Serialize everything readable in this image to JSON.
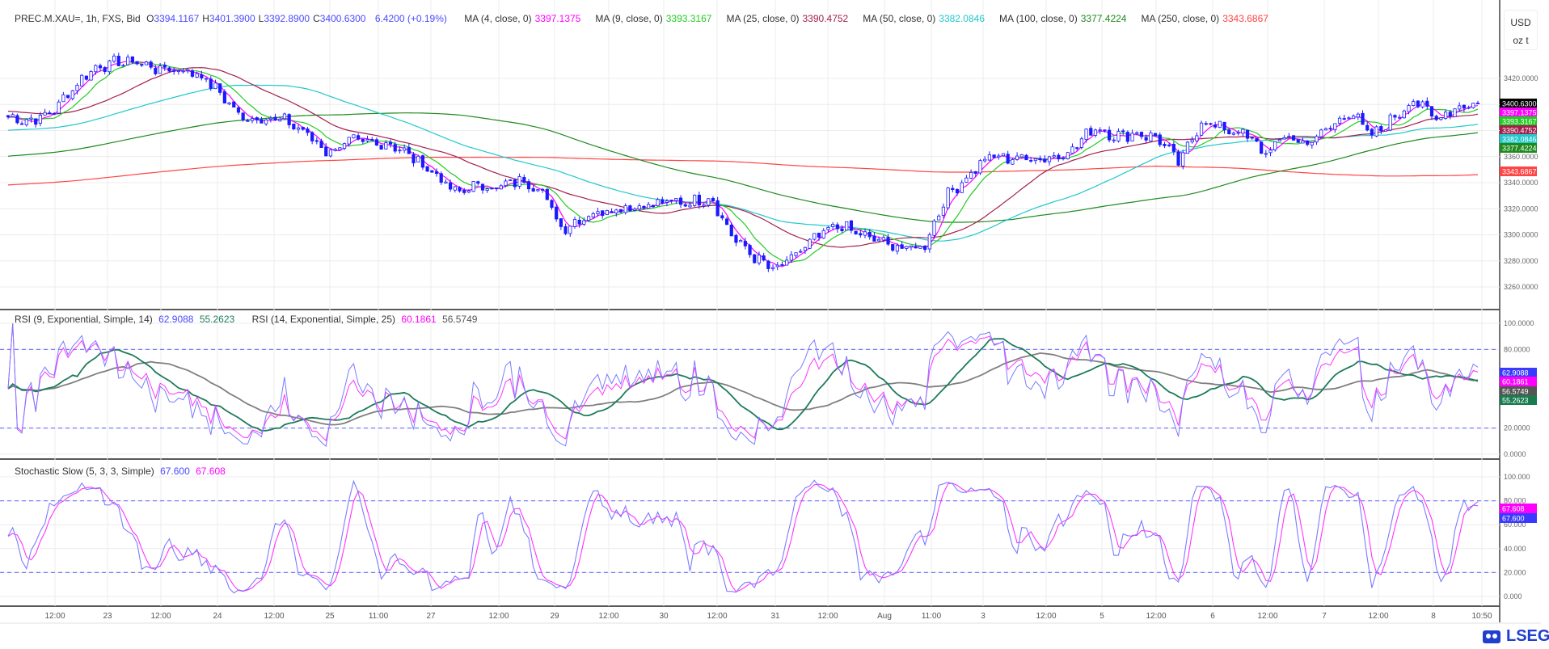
{
  "header": {
    "symbol": "PREC.M.XAU=, 1h, FXS, Bid",
    "open_label": "O",
    "open": "3394.1167",
    "high_label": "H",
    "high": "3401.3900",
    "low_label": "L",
    "low": "3392.8900",
    "close_label": "C",
    "close": "3400.6300",
    "change": "6.4200 (+0.19%)",
    "mas": [
      {
        "label": "MA (4, close, 0)",
        "value": "3397.1375",
        "color": "#ff00ff"
      },
      {
        "label": "MA (9, close, 0)",
        "value": "3393.3167",
        "color": "#22cc22"
      },
      {
        "label": "MA (25, close, 0)",
        "value": "3390.4752",
        "color": "#a3204d"
      },
      {
        "label": "MA (50, close, 0)",
        "value": "3382.0846",
        "color": "#22c8cc"
      },
      {
        "label": "MA (100, close, 0)",
        "value": "3377.4224",
        "color": "#1e8a1e"
      },
      {
        "label": "MA (250, close, 0)",
        "value": "3343.6867",
        "color": "#ff4444"
      }
    ]
  },
  "unit": {
    "currency": "USD",
    "measure": "oz t"
  },
  "rsi": {
    "rsi1_label": "RSI (9, Exponential, Simple, 14)",
    "rsi1_value": "62.9088",
    "rsi1_signal": "55.2623",
    "rsi2_label": "RSI (14, Exponential, Simple, 25)",
    "rsi2_value": "60.1861",
    "rsi2_signal": "56.5749",
    "ticks": [
      "100.0000",
      "80.0000",
      "20.0000",
      "0.0000"
    ],
    "levels": [
      80,
      20
    ]
  },
  "stoch": {
    "label": "Stochastic Slow (5, 3, 3, Simple)",
    "k_value": "67.600",
    "d_value": "67.608",
    "ticks": [
      "100.000",
      "80.000",
      "60.000",
      "40.000",
      "20.000",
      "0.000"
    ],
    "levels": [
      80,
      20
    ]
  },
  "colors": {
    "candle": "#1a1aff",
    "rsi1": "#7b7bff",
    "rsi1_signal": "#1e7b5a",
    "rsi2": "#ff33ff",
    "rsi2_signal": "#808080",
    "stoch_k": "#7b7bff",
    "stoch_d": "#ff33ff",
    "level": "#7b7bff"
  },
  "chart_data": {
    "type": "candlestick",
    "price_ticks": [
      "3420.0000",
      "3360.0000",
      "3340.0000",
      "3320.0000",
      "3300.0000",
      "3280.0000",
      "3260.0000"
    ],
    "ylim": [
      3250,
      3440
    ],
    "time_labels": [
      "12:00",
      "23",
      "12:00",
      "24",
      "12:00",
      "25",
      "11:00",
      "27",
      "12:00",
      "29",
      "12:00",
      "30",
      "12:00",
      "31",
      "12:00",
      "Aug",
      "11:00",
      "3",
      "12:00",
      "5",
      "12:00",
      "6",
      "12:00",
      "7",
      "12:00",
      "8",
      "10:50"
    ],
    "approx_close_path": [
      3390.5,
      3387.5,
      3393,
      3412,
      3428,
      3432,
      3433,
      3427,
      3427,
      3423,
      3408,
      3389,
      3390,
      3387.5,
      3378,
      3363,
      3372,
      3370,
      3370,
      3359,
      3347.5,
      3332,
      3338,
      3336,
      3342,
      3336,
      3304.5,
      3313.5,
      3319,
      3321,
      3322.6,
      3325,
      3325,
      3329,
      3298.5,
      3283.4,
      3272,
      3285,
      3298.5,
      3307.5,
      3300,
      3294.7,
      3289.4,
      3291,
      3329,
      3344,
      3360,
      3359,
      3359,
      3359,
      3366,
      3383,
      3375.5,
      3378,
      3374,
      3355,
      3387,
      3381.5,
      3378,
      3362.6,
      3375.5,
      3370,
      3381.5,
      3395,
      3375.5,
      3389,
      3404,
      3389,
      3398,
      3400.63
    ],
    "last_values": {
      "close": "3400.6300"
    }
  },
  "logo": {
    "text": "LSEG"
  }
}
